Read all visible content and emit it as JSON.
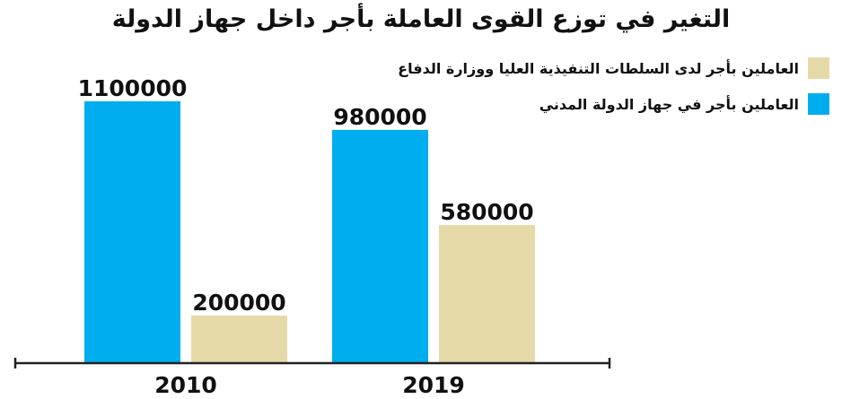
{
  "chart_data": {
    "type": "bar",
    "title": "التغير في توزع القوى العاملة بأجر داخل جهاز الدولة",
    "categories": [
      "2010",
      "2019"
    ],
    "series": [
      {
        "name": "العاملين بأجر في جهاز الدولة المدني",
        "color": "#00adef",
        "values": [
          1100000,
          980000
        ]
      },
      {
        "name": "العاملين بأجر لدى السلطات التنفيذية العليا ووزارة الدفاع",
        "color": "#e6d9a8",
        "values": [
          200000,
          580000
        ]
      }
    ],
    "data_labels": [
      [
        "1100000",
        "980000"
      ],
      [
        "200000",
        "580000"
      ]
    ],
    "ylim": [
      0,
      1100000
    ],
    "grid": false,
    "legend_position": "top-right"
  }
}
